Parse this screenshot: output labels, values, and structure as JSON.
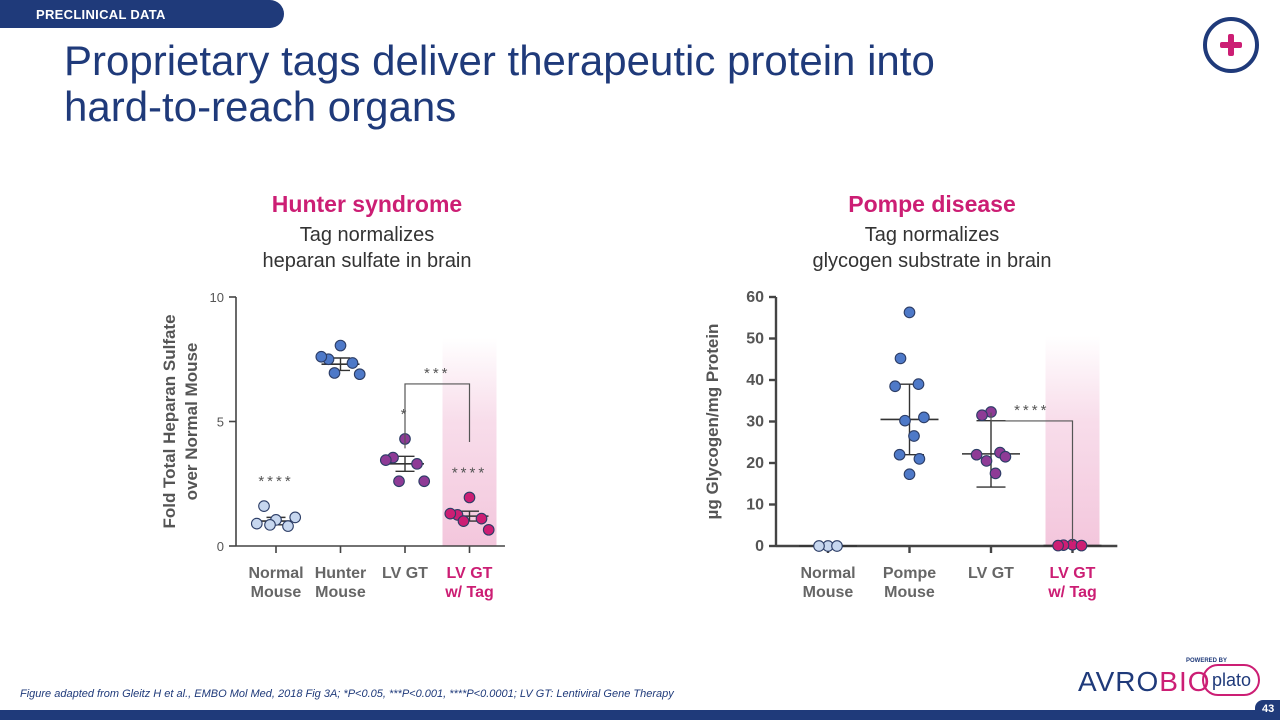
{
  "header": {
    "tag": "PRECLINICAL DATA",
    "title_line1": "Proprietary tags deliver therapeutic protein into",
    "title_line2": "hard-to-reach organs"
  },
  "footnote": "Figure adapted from Gleitz H et al., EMBO Mol Med, 2018 Fig 3A; *P<0.05, ***P<0.001, ****P<0.0001; LV GT: Lentiviral Gene Therapy",
  "page_number": "43",
  "logo": {
    "avro": "AVRO",
    "bio": "BIO",
    "powered_by": "POWERED BY",
    "plato": "plato"
  },
  "colors": {
    "navy": "#1f3a7a",
    "magenta": "#cc1e74",
    "light_blue": "#c7d7ef",
    "blue": "#4e79c8",
    "purple": "#8e3b96",
    "pink": "#cc1e74"
  },
  "chart_data": [
    {
      "type": "scatter",
      "title": "Hunter syndrome",
      "subtitle_line1": "Tag normalizes",
      "subtitle_line2": "heparan sulfate in brain",
      "ylabel_line1": "Fold Total Heparan Sulfate",
      "ylabel_line2": "over Normal Mouse",
      "ylim": [
        0,
        10
      ],
      "yticks": [
        "0",
        "5",
        "10"
      ],
      "highlighted_group": 3,
      "groups": [
        {
          "label_line1": "Normal",
          "label_line2": "Mouse",
          "color": "#c7d7ef",
          "values": [
            1.05,
            1.6,
            0.8,
            0.9,
            1.15,
            0.85
          ],
          "mean": 1.0,
          "err": 0.15,
          "sig": "****"
        },
        {
          "label_line1": "Hunter",
          "label_line2": "Mouse",
          "color": "#4e79c8",
          "values": [
            8.05,
            7.5,
            7.35,
            7.6,
            6.9,
            6.95
          ],
          "mean": 7.3,
          "err": 0.25,
          "sig": ""
        },
        {
          "label_line1": "LV GT",
          "label_line2": "",
          "color": "#8e3b96",
          "values": [
            4.3,
            3.55,
            3.3,
            3.45,
            2.6,
            2.6
          ],
          "mean": 3.3,
          "err": 0.3,
          "sig": "*"
        },
        {
          "label_line1": "LV GT",
          "label_line2": "w/ Tag",
          "color": "#cc1e74",
          "values": [
            1.95,
            1.25,
            1.1,
            1.3,
            0.65,
            1.0
          ],
          "mean": 1.2,
          "err": 0.2,
          "sig": "****"
        }
      ],
      "bracket": {
        "from": 2,
        "to": 3,
        "label": "***"
      }
    },
    {
      "type": "scatter",
      "title": "Pompe disease",
      "subtitle_line1": "Tag normalizes",
      "subtitle_line2": "glycogen substrate in brain",
      "ylabel_line1": "µg Glycogen/mg Protein",
      "ylabel_line2": "",
      "ylim": [
        0,
        60
      ],
      "yticks": [
        "0",
        "10",
        "20",
        "30",
        "40",
        "50",
        "60"
      ],
      "highlighted_group": 3,
      "groups": [
        {
          "label_line1": "Normal",
          "label_line2": "Mouse",
          "color": "#c7d7ef",
          "values": [
            0,
            0,
            0
          ],
          "mean": 0,
          "err": 0,
          "sig": ""
        },
        {
          "label_line1": "Pompe",
          "label_line2": "Mouse",
          "color": "#4e79c8",
          "values": [
            56.3,
            45.2,
            39.0,
            38.5,
            31.0,
            30.2,
            26.5,
            22.0,
            21.0,
            17.3
          ],
          "mean": 30.5,
          "err": 8.5,
          "sig": ""
        },
        {
          "label_line1": "LV GT",
          "label_line2": "",
          "color": "#8e3b96",
          "values": [
            32.3,
            31.5,
            22.5,
            22.0,
            21.5,
            20.5,
            17.5
          ],
          "mean": 22.2,
          "err": 8.0,
          "sig": ""
        },
        {
          "label_line1": "LV GT",
          "label_line2": "w/ Tag",
          "color": "#cc1e74",
          "values": [
            0.3,
            0.2,
            0.1,
            0.1
          ],
          "mean": 0.1,
          "err": 0,
          "sig": ""
        }
      ],
      "bracket": {
        "from": 2,
        "to": 3,
        "label": "****"
      }
    }
  ]
}
